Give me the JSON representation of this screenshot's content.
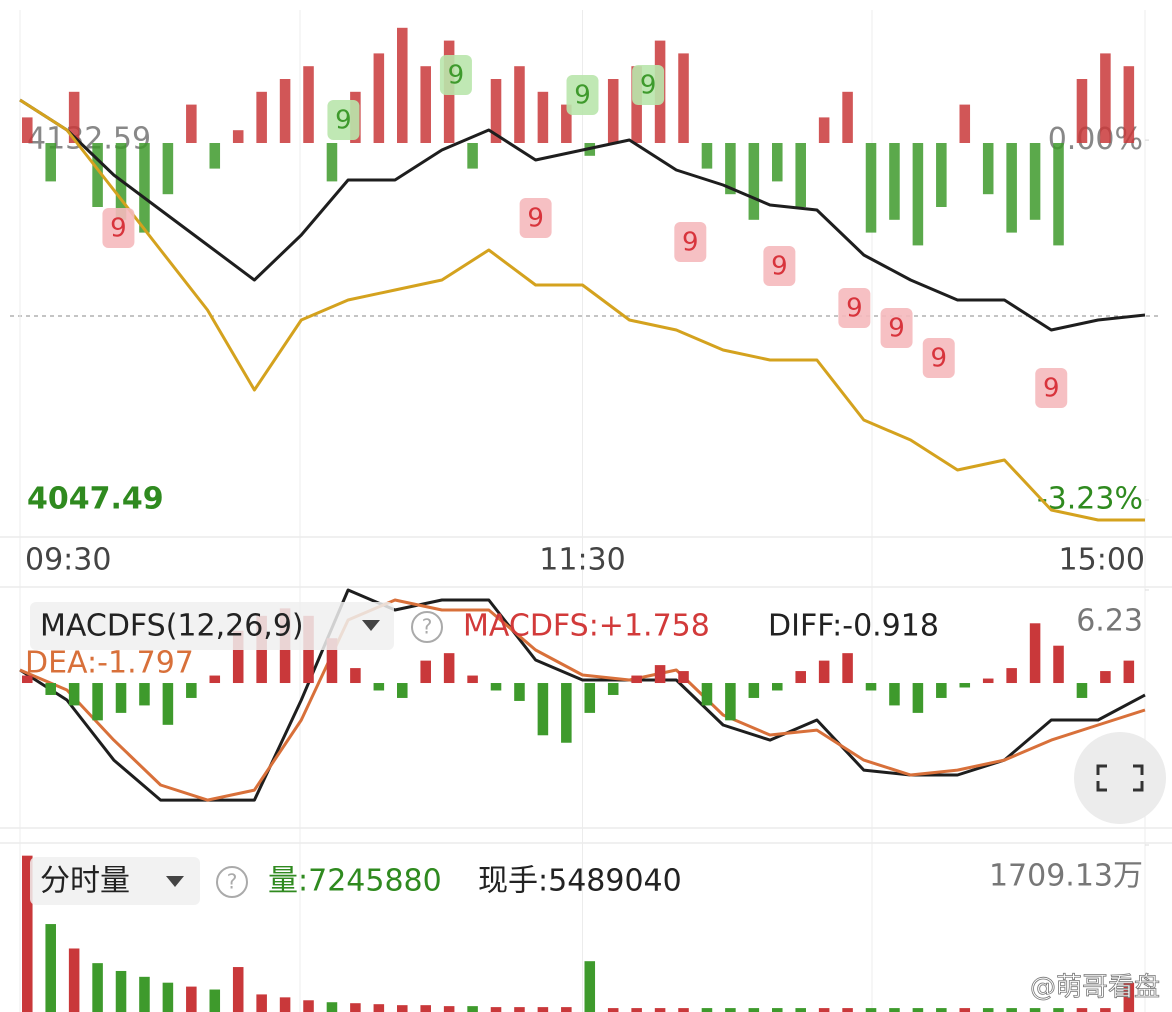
{
  "chart_data": [
    {
      "type": "line",
      "x": [
        0,
        10,
        20,
        30,
        40,
        50,
        60,
        70,
        80,
        90,
        100,
        110,
        120,
        130,
        140,
        150,
        160,
        170,
        180,
        190,
        200,
        210,
        220,
        230,
        240
      ],
      "xlim": [
        0,
        240
      ],
      "xticks": [
        {
          "value": 0,
          "label": "09:30"
        },
        {
          "value": 120,
          "label": "11:30"
        },
        {
          "value": 240,
          "label": "15:00"
        }
      ],
      "ylim": [
        4040.4,
        4163.32
      ],
      "yticks": [
        4132.59,
        4047.49
      ],
      "y2lim": [
        -3.5,
        1.17
      ],
      "y2ticks": [
        {
          "value": 0,
          "label": "0.00%"
        },
        {
          "value": -3.23,
          "label": "-3.23%"
        }
      ],
      "grid": true,
      "series": [
        {
          "color": "#1e1e1e",
          "values": [
            4142.05,
            4134.95,
            4124.32,
            4116.04,
            4107.77,
            4099.49,
            4110.13,
            4123.13,
            4123.13,
            4130.23,
            4134.95,
            4127.86,
            4130.23,
            4132.59,
            4125.5,
            4121.95,
            4117.22,
            4116.04,
            4105.4,
            4099.49,
            4094.77,
            4094.77,
            4087.68,
            4090.04,
            4091.22
          ]
        },
        {
          "color": "#d4a21e",
          "values": [
            4142.05,
            4134.95,
            4120.77,
            4106.59,
            4092.4,
            4073.5,
            4090.04,
            4094.77,
            4097.13,
            4099.49,
            4106.59,
            4098.31,
            4098.31,
            4090.04,
            4087.68,
            4082.95,
            4080.59,
            4080.59,
            4066.4,
            4061.68,
            4054.58,
            4056.94,
            4045.13,
            4042.77,
            4042.77
          ]
        }
      ],
      "annotations": [
        {
          "x": 21,
          "y": 4111.79,
          "text": "9",
          "color": "#d8343c"
        },
        {
          "x": 69,
          "y": 4137.32,
          "text": "9",
          "color": "#3e9a2c"
        },
        {
          "x": 93,
          "y": 4147.96,
          "text": "9",
          "color": "#3e9a2c"
        },
        {
          "x": 110,
          "y": 4114.15,
          "text": "9",
          "color": "#d8343c"
        },
        {
          "x": 120,
          "y": 4143.23,
          "text": "9",
          "color": "#3e9a2c"
        },
        {
          "x": 134,
          "y": 4145.59,
          "text": "9",
          "color": "#3e9a2c"
        },
        {
          "x": 143,
          "y": 4108.48,
          "text": "9",
          "color": "#d8343c"
        },
        {
          "x": 162,
          "y": 4102.8,
          "text": "9",
          "color": "#d8343c"
        },
        {
          "x": 178,
          "y": 4092.87,
          "text": "9",
          "color": "#d8343c"
        },
        {
          "x": 187,
          "y": 4088.15,
          "text": "9",
          "color": "#d8343c"
        },
        {
          "x": 196,
          "y": 4081.06,
          "text": "9",
          "color": "#d8343c"
        },
        {
          "x": 220,
          "y": 4073.96,
          "text": "9",
          "color": "#d8343c"
        }
      ]
    },
    {
      "type": "bar",
      "x": [
        0,
        5,
        10,
        15,
        20,
        25,
        30,
        35,
        40,
        45,
        50,
        55,
        60,
        65,
        70,
        75,
        80,
        85,
        90,
        95,
        100,
        105,
        110,
        115,
        120,
        125,
        130,
        135,
        140,
        145,
        150,
        155,
        160,
        165,
        170,
        175,
        180,
        185,
        190,
        195,
        200,
        205,
        210,
        215,
        220,
        225,
        230,
        235
      ],
      "xlim": [
        0,
        240
      ],
      "ylim": [
        -100,
        100
      ],
      "up_color": "#c9383a",
      "down_color": "#3e9a2c",
      "values": [
        20,
        -30,
        40,
        -50,
        -60,
        -70,
        -40,
        30,
        -20,
        10,
        40,
        50,
        60,
        -30,
        40,
        70,
        90,
        60,
        80,
        -20,
        50,
        60,
        40,
        30,
        -10,
        50,
        60,
        80,
        70,
        -20,
        -40,
        -60,
        -30,
        -50,
        20,
        40,
        -70,
        -60,
        -80,
        -50,
        30,
        -40,
        -70,
        -60,
        -80,
        50,
        70,
        60
      ]
    },
    {
      "type": "line",
      "title": "MACDFS(12,26,9)",
      "labels": [
        "MACDFS:+1.758",
        "DIFF:-0.918",
        "DEA:-1.797"
      ],
      "x": [
        0,
        10,
        20,
        30,
        40,
        50,
        60,
        70,
        80,
        90,
        100,
        110,
        120,
        130,
        140,
        150,
        160,
        170,
        180,
        190,
        200,
        210,
        220,
        230,
        240
      ],
      "xlim": [
        0,
        240
      ],
      "ylim": [
        -9.71,
        6.23
      ],
      "yticks": [
        6.23
      ],
      "series": [
        {
          "color": "#1e1e1e",
          "values": [
            0.87,
            -1.14,
            -5.16,
            -7.84,
            -7.84,
            -7.84,
            -1.14,
            6.23,
            4.89,
            5.56,
            5.56,
            1.54,
            0.2,
            0.2,
            0.2,
            -2.81,
            -3.82,
            -2.48,
            -5.83,
            -6.16,
            -6.16,
            -5.16,
            -2.48,
            -2.48,
            -0.8
          ]
        },
        {
          "color": "#d8703a",
          "values": [
            0.87,
            -0.47,
            -3.82,
            -6.83,
            -7.84,
            -7.17,
            -2.48,
            4.22,
            5.56,
            4.89,
            4.89,
            2.21,
            0.54,
            0.2,
            0.87,
            -2.14,
            -3.48,
            -3.15,
            -5.16,
            -6.16,
            -5.83,
            -5.16,
            -3.82,
            -2.81,
            -1.81
          ]
        }
      ]
    },
    {
      "type": "bar",
      "x": [
        0,
        5,
        10,
        15,
        20,
        25,
        30,
        35,
        40,
        45,
        50,
        55,
        60,
        65,
        70,
        75,
        80,
        85,
        90,
        95,
        100,
        105,
        110,
        115,
        120,
        125,
        130,
        135,
        140,
        145,
        150,
        155,
        160,
        165,
        170,
        175,
        180,
        185,
        190,
        195,
        200,
        205,
        210,
        215,
        220,
        225,
        230,
        235
      ],
      "xlim": [
        0,
        240
      ],
      "ylim": [
        -9.71,
        6.23
      ],
      "up_color": "#c9383a",
      "down_color": "#3e9a2c",
      "values": [
        0.5,
        -0.8,
        -1.5,
        -2.5,
        -2.0,
        -1.5,
        -2.8,
        -1.0,
        0.5,
        3.5,
        4.5,
        5.0,
        4.5,
        3.0,
        1.0,
        -0.5,
        -1.0,
        1.5,
        2.0,
        0.5,
        -0.5,
        -1.2,
        -3.5,
        -4.0,
        -2.0,
        -0.8,
        0.5,
        1.2,
        0.8,
        -1.5,
        -2.5,
        -1.0,
        -0.5,
        0.8,
        1.5,
        2.0,
        -0.5,
        -1.5,
        -2.0,
        -1.0,
        -0.3,
        0.3,
        1.0,
        4.0,
        2.5,
        -1.0,
        0.8,
        1.5
      ]
    },
    {
      "type": "bar",
      "title": "分时量",
      "labels": [
        "量:7245880",
        "现手:5489040"
      ],
      "x": [
        0,
        5,
        10,
        15,
        20,
        25,
        30,
        35,
        40,
        45,
        50,
        55,
        60,
        65,
        70,
        75,
        80,
        85,
        90,
        95,
        100,
        105,
        110,
        115,
        120,
        125,
        130,
        135,
        140,
        145,
        150,
        155,
        160,
        165,
        170,
        175,
        180,
        185,
        190,
        195,
        200,
        205,
        210,
        215,
        220,
        225,
        230,
        235
      ],
      "xlim": [
        0,
        240
      ],
      "ylim": [
        0,
        17091300
      ],
      "yticks": [
        {
          "value": 17091300,
          "label": "1709.13万"
        }
      ],
      "up_color": "#c9383a",
      "down_color": "#3e9a2c",
      "values": [
        16000000,
        9000000,
        6500000,
        5000000,
        4200000,
        3600000,
        3000000,
        2600000,
        2300000,
        4600000,
        1800000,
        1500000,
        1200000,
        1000000,
        900000,
        800000,
        700000,
        700000,
        600000,
        600000,
        500000,
        500000,
        500000,
        500000,
        5200000,
        400000,
        400000,
        400000,
        400000,
        400000,
        400000,
        400000,
        400000,
        400000,
        400000,
        400000,
        400000,
        400000,
        400000,
        400000,
        400000,
        400000,
        400000,
        400000,
        400000,
        400000,
        400000,
        3000000
      ]
    }
  ],
  "watermark": "@萌哥看盘"
}
